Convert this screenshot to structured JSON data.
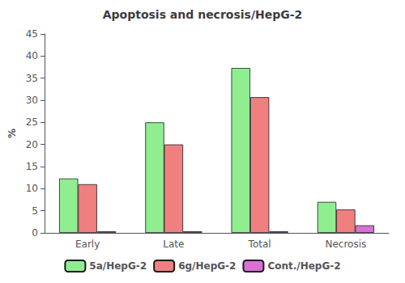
{
  "chart_data": {
    "type": "bar",
    "title": "Apoptosis and necrosis/HepG-2",
    "ylabel": "%",
    "categories": [
      "Early",
      "Late",
      "Total",
      "Necrosis"
    ],
    "series": [
      {
        "name": "5a/HepG-2",
        "color": "#90EE90",
        "values": [
          12.3,
          25.0,
          37.3,
          7.0
        ]
      },
      {
        "name": "6g/HepG-2",
        "color": "#F08080",
        "values": [
          11.0,
          20.0,
          30.7,
          5.3
        ]
      },
      {
        "name": "Cont./HepG-2",
        "color": "#DA70D6",
        "values": [
          0.35,
          0.35,
          0.35,
          1.7
        ]
      }
    ],
    "ylim": [
      0,
      45
    ],
    "yticks": [
      0,
      5,
      10,
      15,
      20,
      25,
      30,
      35,
      40,
      45
    ],
    "grid": false,
    "legend": "bottom"
  }
}
